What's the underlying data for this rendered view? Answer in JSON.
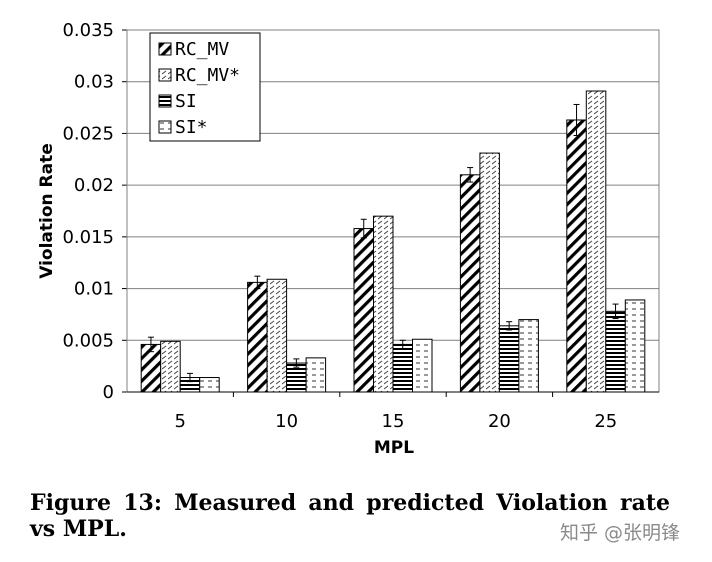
{
  "chart_data": {
    "type": "bar",
    "xlabel": "MPL",
    "ylabel": "Violation Rate",
    "categories": [
      "5",
      "10",
      "15",
      "20",
      "25"
    ],
    "ylim": [
      0,
      0.035
    ],
    "yticks": [
      "0",
      "0.005",
      "0.01",
      "0.015",
      "0.02",
      "0.025",
      "0.03",
      "0.035"
    ],
    "grid": true,
    "legend_position": "top-left",
    "series": [
      {
        "name": "RC_MV",
        "pattern": "diagonal-hatch",
        "values": [
          0.0046,
          0.0106,
          0.0158,
          0.021,
          0.0263
        ],
        "errors": [
          0.0007,
          0.0006,
          0.0009,
          0.0007,
          0.0015
        ]
      },
      {
        "name": "RC_MV*",
        "pattern": "fine-dashed",
        "values": [
          0.0049,
          0.0109,
          0.017,
          0.0231,
          0.0291
        ]
      },
      {
        "name": "SI",
        "pattern": "horizontal-lines",
        "values": [
          0.0014,
          0.0028,
          0.0046,
          0.0064,
          0.0078
        ],
        "errors": [
          0.0004,
          0.0004,
          0.0004,
          0.0004,
          0.0007
        ]
      },
      {
        "name": "SI*",
        "pattern": "dashed-horizontal",
        "values": [
          0.0014,
          0.0033,
          0.0051,
          0.007,
          0.0089
        ]
      }
    ]
  },
  "caption": "Figure 13:  Measured and predicted Violation rate vs MPL.",
  "watermark": "知乎 @张明锋"
}
